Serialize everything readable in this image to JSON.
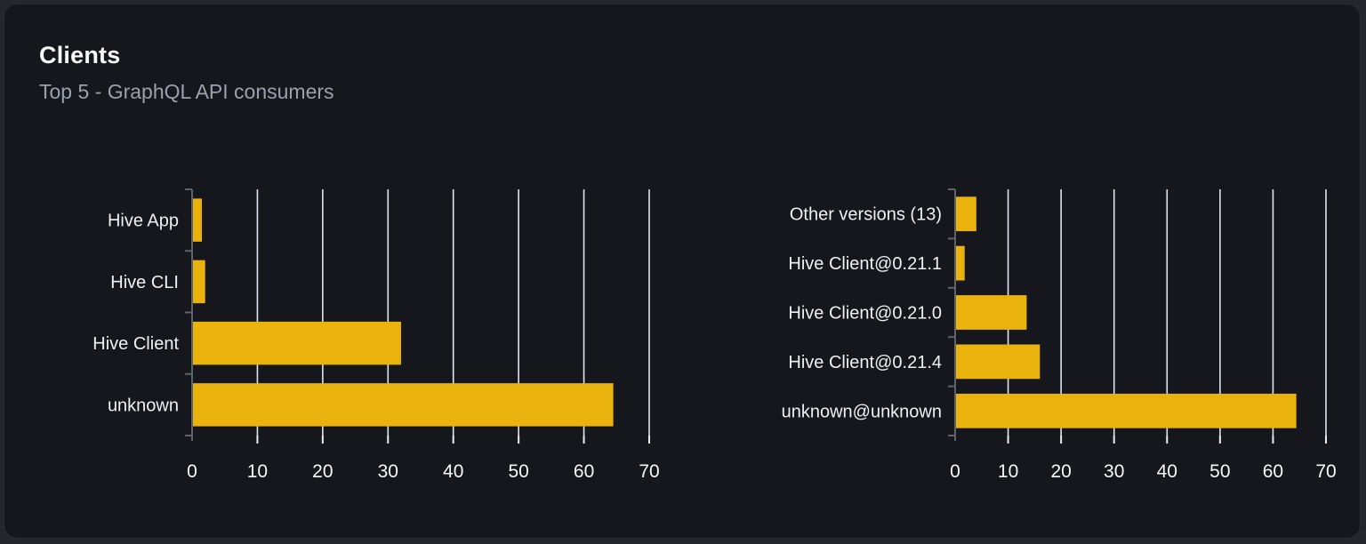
{
  "header": {
    "title": "Clients",
    "subtitle": "Top 5 - GraphQL API consumers"
  },
  "colors": {
    "page_bg": "#24262c",
    "card_bg": "#15171c",
    "card_border": "#2b2d33",
    "title": "#fafafa",
    "subtitle": "#9aa1ac",
    "bar": "#e9b20d",
    "gridline": "#dee4ed",
    "axis": "#5d626b",
    "x_tick": "#e9edf3",
    "category_label": "#eef0f3",
    "x_axis_label": "#f5f7fa"
  },
  "chart_data": [
    {
      "type": "bar",
      "name": "clients-by-name",
      "orientation": "horizontal",
      "categories": [
        "Hive App",
        "Hive CLI",
        "Hive Client",
        "unknown"
      ],
      "values": [
        1.5,
        2,
        32,
        64.5
      ],
      "xlim": [
        0,
        70
      ],
      "xticks": [
        0,
        10,
        20,
        30,
        40,
        50,
        60,
        70
      ],
      "grid": true,
      "legend": "none"
    },
    {
      "type": "bar",
      "name": "clients-by-version",
      "orientation": "horizontal",
      "categories": [
        "Other versions (13)",
        "Hive Client@0.21.1",
        "Hive Client@0.21.0",
        "Hive Client@0.21.4",
        "unknown@unknown"
      ],
      "values": [
        4,
        1.8,
        13.5,
        16,
        64.4
      ],
      "xlim": [
        0,
        70
      ],
      "xticks": [
        0,
        10,
        20,
        30,
        40,
        50,
        60,
        70
      ],
      "grid": true,
      "legend": "none"
    }
  ]
}
